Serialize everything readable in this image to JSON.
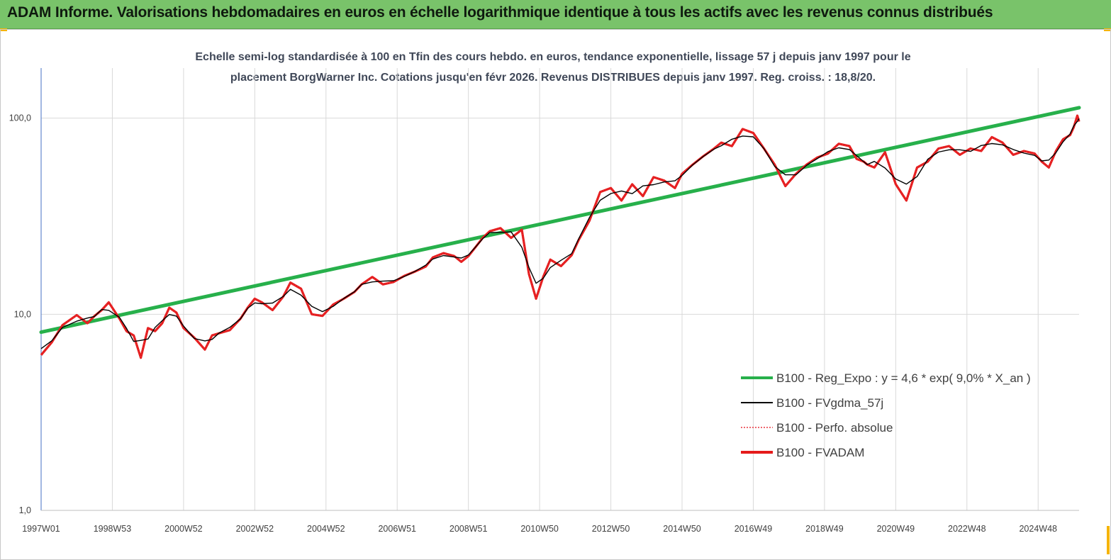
{
  "header": {
    "title": "ADAM Informe. Valorisations hebdomadaires en euros en échelle logarithmique identique à tous les actifs avec les revenus connus distribués"
  },
  "colors": {
    "banner": "#79c36a",
    "regression": "#27b04b",
    "fvgdma": "#000000",
    "perfo": "#e8353f",
    "fvadam": "#e51b1b",
    "corner": "#f5b400"
  },
  "chart_data": {
    "type": "line",
    "title_line1": "Echelle semi-log standardisée à 100 en Tfin des cours hebdo. en euros, tendance exponentielle, lissage 57 j depuis janv 1997 pour le",
    "title_line2": "placement BorgWarner Inc. Cotations jusqu'en févr 2026. Revenus DISTRIBUES depuis janv 1997. Reg. croiss. : 18,8/20.",
    "y_scale": "log",
    "ylim": [
      1,
      180
    ],
    "y_ticks": [
      "1,0",
      "10,0",
      "100,0"
    ],
    "y_tick_values": [
      1,
      10,
      100
    ],
    "xlim": [
      1997.0,
      2026.15
    ],
    "x_ticks": [
      "1997W01",
      "1998W53",
      "2000W52",
      "2002W52",
      "2004W52",
      "2006W51",
      "2008W51",
      "2010W50",
      "2012W50",
      "2014W50",
      "2016W49",
      "2018W49",
      "2020W49",
      "2022W48",
      "2024W48"
    ],
    "x_tick_values": [
      1997.0,
      1999.0,
      2001.0,
      2003.0,
      2005.0,
      2007.0,
      2009.0,
      2011.0,
      2013.0,
      2015.0,
      2017.0,
      2019.0,
      2021.0,
      2023.0,
      2025.0
    ],
    "grid": "vertical",
    "legend_position": "lower-right",
    "legend": [
      {
        "label": "B100 - Reg_Expo : y = 4,6 *  exp( 9,0% *  X_an )",
        "style": "thick-solid",
        "color": "#27b04b"
      },
      {
        "label": "B100 - FVgdma_57j",
        "style": "solid",
        "color": "#000000"
      },
      {
        "label": "B100 - Perfo. absolue",
        "style": "dotted",
        "color": "#e8353f"
      },
      {
        "label": "B100 - FVADAM",
        "style": "thick-solid",
        "color": "#e51b1b"
      }
    ],
    "series": [
      {
        "name": "B100 - Reg_Expo : y = 4,6 *  exp( 9,0% *  X_an )",
        "x": [
          1997.0,
          2026.15
        ],
        "y": [
          8.1,
          113
        ]
      },
      {
        "name": "B100 - FVADAM",
        "x": [
          1997.0,
          1997.3,
          1997.6,
          1998.0,
          1998.3,
          1998.5,
          1998.7,
          1998.9,
          1999.2,
          1999.4,
          1999.6,
          1999.8,
          2000.0,
          2000.2,
          2000.4,
          2000.6,
          2000.8,
          2001.0,
          2001.3,
          2001.6,
          2001.8,
          2002.0,
          2002.3,
          2002.6,
          2002.8,
          2003.0,
          2003.2,
          2003.5,
          2003.8,
          2004.0,
          2004.3,
          2004.6,
          2004.9,
          2005.2,
          2005.5,
          2005.8,
          2006.0,
          2006.3,
          2006.6,
          2006.9,
          2007.2,
          2007.5,
          2007.8,
          2008.0,
          2008.3,
          2008.6,
          2008.8,
          2009.0,
          2009.2,
          2009.4,
          2009.6,
          2009.9,
          2010.2,
          2010.5,
          2010.7,
          2010.9,
          2011.1,
          2011.3,
          2011.6,
          2011.9,
          2012.1,
          2012.4,
          2012.7,
          2013.0,
          2013.3,
          2013.6,
          2013.9,
          2014.2,
          2014.5,
          2014.8,
          2015.0,
          2015.3,
          2015.6,
          2015.9,
          2016.1,
          2016.4,
          2016.7,
          2017.0,
          2017.3,
          2017.6,
          2017.9,
          2018.2,
          2018.5,
          2018.8,
          2019.1,
          2019.4,
          2019.7,
          2019.9,
          2020.1,
          2020.2,
          2020.4,
          2020.7,
          2021.0,
          2021.3,
          2021.6,
          2021.9,
          2022.2,
          2022.5,
          2022.8,
          2023.1,
          2023.4,
          2023.7,
          2024.0,
          2024.3,
          2024.6,
          2024.9,
          2025.1,
          2025.3,
          2025.5,
          2025.7,
          2025.9,
          2026.0,
          2026.1,
          2026.15
        ],
        "y": [
          6.2,
          7.2,
          8.8,
          9.9,
          9.0,
          9.8,
          10.5,
          11.5,
          9.5,
          8.2,
          7.8,
          6.0,
          8.5,
          8.2,
          9.0,
          10.8,
          10.2,
          8.5,
          7.6,
          6.6,
          7.8,
          8.0,
          8.3,
          9.5,
          10.8,
          12.0,
          11.5,
          10.5,
          12.3,
          14.5,
          13.5,
          10.0,
          9.8,
          11.2,
          12.0,
          13.0,
          14.2,
          15.5,
          14.2,
          14.6,
          15.7,
          16.5,
          17.5,
          19.5,
          20.5,
          19.8,
          18.5,
          19.8,
          22.0,
          24.5,
          26.5,
          27.5,
          24.5,
          27.0,
          16.0,
          12.0,
          15.5,
          19.0,
          17.6,
          20.0,
          24.0,
          30.0,
          42.0,
          44.0,
          38.0,
          46.0,
          40.0,
          50.0,
          48.0,
          44.0,
          52.0,
          58.0,
          64.0,
          70.0,
          75.0,
          72.0,
          88.0,
          84.0,
          70.0,
          58.0,
          45.0,
          52.0,
          58.0,
          63.0,
          66.0,
          74.0,
          72.0,
          62.0,
          60.0,
          58.0,
          56.0,
          67.0,
          46.0,
          38.0,
          56.0,
          60.0,
          70.0,
          72.0,
          65.0,
          70.0,
          68.0,
          80.0,
          75.0,
          65.0,
          68.0,
          66.0,
          60.0,
          56.0,
          68.0,
          78.0,
          82.0,
          90.0,
          103.0,
          96.0
        ]
      },
      {
        "name": "B100 - FVgdma_57j",
        "smoothing": "57 j moving average of B100 - FVADAM"
      },
      {
        "name": "B100 - Perfo. absolue",
        "note": "overlaps B100 - FVADAM"
      }
    ]
  }
}
